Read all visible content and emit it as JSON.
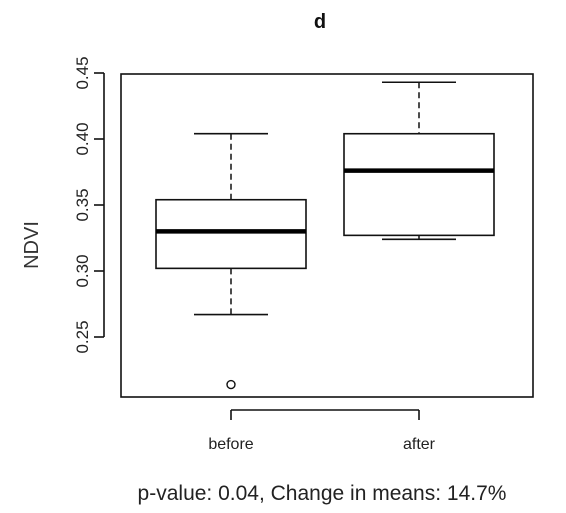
{
  "chart_data": {
    "type": "boxplot",
    "title": "d",
    "ylabel": "NDVI",
    "xlabel": "",
    "ylim": [
      0.2,
      0.46
    ],
    "yticks": [
      0.25,
      0.3,
      0.35,
      0.4,
      0.45
    ],
    "ytick_labels": [
      "0.25",
      "0.30",
      "0.35",
      "0.40",
      "0.45"
    ],
    "categories": [
      "before",
      "after"
    ],
    "boxes": [
      {
        "name": "before",
        "whisker_low": 0.267,
        "q1": 0.302,
        "median": 0.33,
        "q3": 0.354,
        "whisker_high": 0.404,
        "outliers": [
          0.214
        ]
      },
      {
        "name": "after",
        "whisker_low": 0.324,
        "q1": 0.327,
        "median": 0.376,
        "q3": 0.404,
        "whisker_high": 0.443,
        "outliers": []
      }
    ],
    "caption": "p-value: 0.04, Change in means: 14.7%",
    "grid": false
  }
}
